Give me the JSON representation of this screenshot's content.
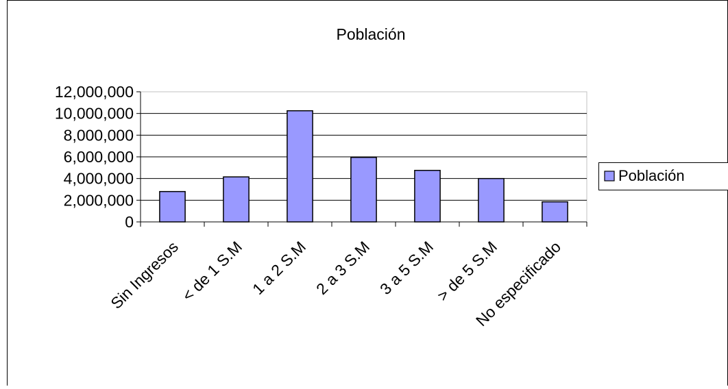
{
  "chart_data": {
    "type": "bar",
    "title": "Población",
    "categories": [
      "Sin Ingresos",
      "< de 1 S.M",
      "1 a 2 S.M",
      "2 a 3 S.M",
      "3 a 5 S.M",
      "> de 5 S.M",
      "No especificado"
    ],
    "series": [
      {
        "name": "Población",
        "values": [
          2800000,
          4150000,
          10250000,
          5950000,
          4750000,
          4000000,
          1850000
        ],
        "color": "#9999ff"
      }
    ],
    "ylim": [
      0,
      12000000
    ],
    "yticks": [
      0,
      2000000,
      4000000,
      6000000,
      8000000,
      10000000,
      12000000
    ],
    "ytick_labels": [
      "0",
      "2,000,000",
      "4,000,000",
      "6,000,000",
      "8,000,000",
      "10,000,000",
      "12,000,000"
    ],
    "grid": true,
    "legend": "right"
  }
}
